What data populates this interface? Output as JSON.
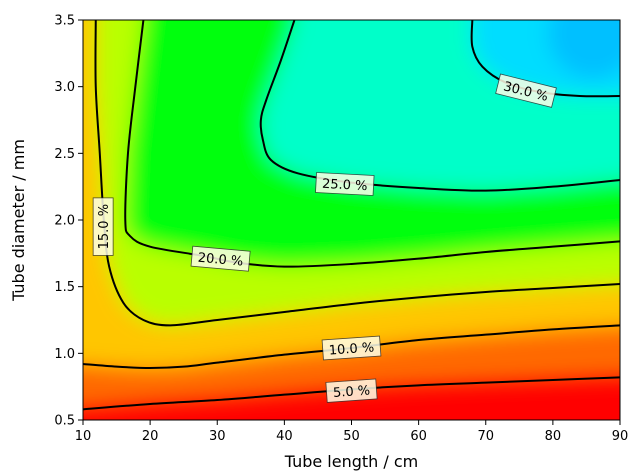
{
  "chart_data": {
    "type": "heatmap",
    "plot_style": "filled-contour",
    "title": "",
    "xlabel": "Tube length / cm",
    "ylabel": "Tube diameter / mm",
    "xlim": [
      10,
      90
    ],
    "ylim": [
      0.5,
      3.5
    ],
    "x_ticks": [
      10,
      20,
      30,
      40,
      50,
      60,
      70,
      80,
      90
    ],
    "y_ticks": [
      0.5,
      1.0,
      1.5,
      2.0,
      2.5,
      3.0,
      3.5
    ],
    "x_tick_labels": [
      "10",
      "20",
      "30",
      "40",
      "50",
      "60",
      "70",
      "80",
      "90"
    ],
    "y_tick_labels": [
      "0.5",
      "1.0",
      "1.5",
      "2.0",
      "2.5",
      "3.0",
      "3.5"
    ],
    "colormap": "red-yellow-green-cyan-blue",
    "colormap_stops": [
      "#ff0000",
      "#ff8a00",
      "#ffff00",
      "#00ff00",
      "#00ffff",
      "#00c0ff"
    ],
    "value_range": [
      0,
      33
    ],
    "grid": false,
    "contours": [
      {
        "label": "5.0 %",
        "level": 5.0,
        "label_at": [
          50,
          0.72
        ],
        "label_angle": -4,
        "points": [
          [
            10,
            0.58
          ],
          [
            20,
            0.62
          ],
          [
            30,
            0.65
          ],
          [
            40,
            0.69
          ],
          [
            50,
            0.73
          ],
          [
            60,
            0.76
          ],
          [
            70,
            0.78
          ],
          [
            80,
            0.8
          ],
          [
            90,
            0.82
          ]
        ]
      },
      {
        "label": "10.0 %",
        "level": 10.0,
        "label_at": [
          50,
          1.04
        ],
        "label_angle": -4,
        "points": [
          [
            10,
            0.92
          ],
          [
            15,
            0.9
          ],
          [
            20,
            0.89
          ],
          [
            25,
            0.9
          ],
          [
            30,
            0.93
          ],
          [
            40,
            0.99
          ],
          [
            50,
            1.04
          ],
          [
            60,
            1.1
          ],
          [
            70,
            1.14
          ],
          [
            80,
            1.18
          ],
          [
            90,
            1.21
          ]
        ]
      },
      {
        "label": "15.0 %",
        "level": 15.0,
        "label_at": [
          13,
          1.95
        ],
        "label_angle": -90,
        "points": [
          [
            11.9,
            3.5
          ],
          [
            11.9,
            3.0
          ],
          [
            12.5,
            2.5
          ],
          [
            13.1,
            2.0
          ],
          [
            13.9,
            1.65
          ],
          [
            16.0,
            1.38
          ],
          [
            19.0,
            1.25
          ],
          [
            23.0,
            1.21
          ],
          [
            30.0,
            1.25
          ],
          [
            40.0,
            1.31
          ],
          [
            50.0,
            1.37
          ],
          [
            60.0,
            1.42
          ],
          [
            70.0,
            1.46
          ],
          [
            80.0,
            1.49
          ],
          [
            90.0,
            1.52
          ]
        ]
      },
      {
        "label": "20.0 %",
        "level": 20.0,
        "label_at": [
          30.5,
          1.71
        ],
        "label_angle": 5,
        "points": [
          [
            19.0,
            3.5
          ],
          [
            17.8,
            3.0
          ],
          [
            16.7,
            2.5
          ],
          [
            16.3,
            2.0
          ],
          [
            17.0,
            1.88
          ],
          [
            20.0,
            1.8
          ],
          [
            28.0,
            1.73
          ],
          [
            33.0,
            1.68
          ],
          [
            40.0,
            1.65
          ],
          [
            50.0,
            1.67
          ],
          [
            60.0,
            1.71
          ],
          [
            70.0,
            1.76
          ],
          [
            80.0,
            1.8
          ],
          [
            90.0,
            1.84
          ]
        ]
      },
      {
        "label": "25.0 %",
        "level": 25.0,
        "label_at": [
          49,
          2.27
        ],
        "label_angle": 3,
        "points": [
          [
            41.5,
            3.5
          ],
          [
            39.5,
            3.2
          ],
          [
            37.3,
            2.9
          ],
          [
            36.5,
            2.75
          ],
          [
            36.8,
            2.6
          ],
          [
            38.0,
            2.45
          ],
          [
            42.0,
            2.35
          ],
          [
            50.0,
            2.28
          ],
          [
            60.0,
            2.24
          ],
          [
            70.0,
            2.22
          ],
          [
            80.0,
            2.25
          ],
          [
            90.0,
            2.3
          ]
        ]
      },
      {
        "label": "30.0 %",
        "level": 30.0,
        "label_at": [
          76,
          2.97
        ],
        "label_angle": 14,
        "points": [
          [
            68.0,
            3.5
          ],
          [
            68.0,
            3.3
          ],
          [
            69.5,
            3.15
          ],
          [
            73.0,
            3.03
          ],
          [
            78.0,
            2.96
          ],
          [
            84.0,
            2.93
          ],
          [
            90.0,
            2.93
          ]
        ]
      }
    ]
  }
}
